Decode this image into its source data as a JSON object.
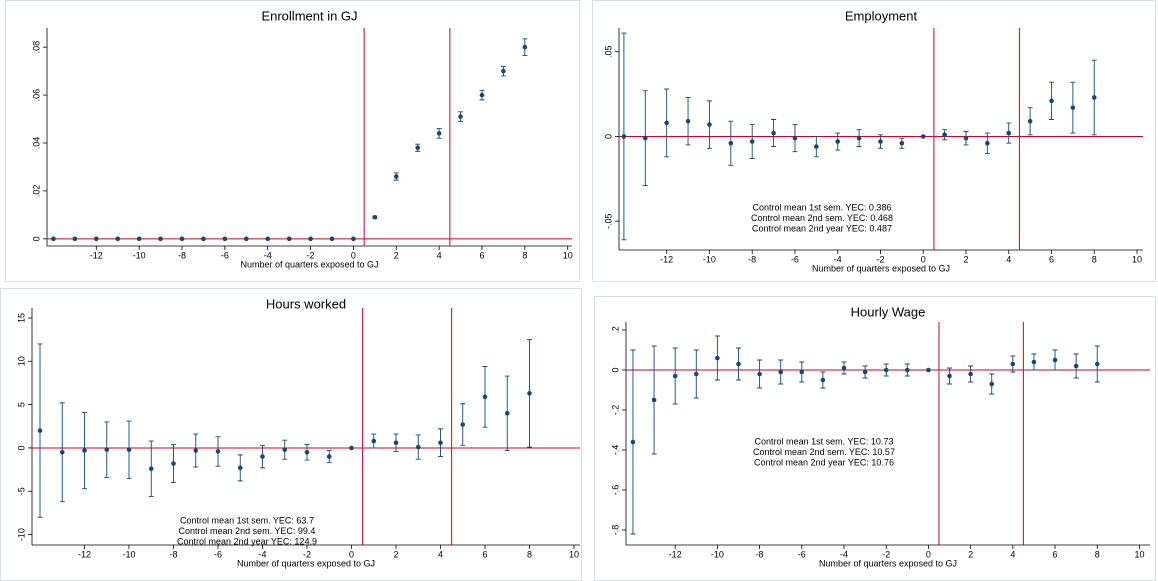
{
  "chart_data": [
    {
      "type": "scatter",
      "title": "Enrollment in GJ",
      "x_label": "Number of quarters exposed to GJ",
      "x": [
        -14,
        -13,
        -12,
        -11,
        -10,
        -9,
        -8,
        -7,
        -6,
        -5,
        -4,
        -3,
        -2,
        -1,
        0,
        1,
        2,
        3,
        4,
        5,
        6,
        7,
        8
      ],
      "values": [
        0,
        0,
        0,
        0,
        0,
        0,
        0,
        0,
        0,
        0,
        0,
        0,
        0,
        0,
        0,
        0.009,
        0.026,
        0.038,
        0.044,
        0.051,
        0.06,
        0.07,
        0.08
      ],
      "errors": [
        0,
        0,
        0,
        0,
        0,
        0,
        0,
        0,
        0,
        0,
        0,
        0,
        0,
        0,
        0,
        0.0005,
        0.0015,
        0.0015,
        0.002,
        0.002,
        0.002,
        0.002,
        0.0035
      ],
      "xlim": [
        -14.3,
        10.2
      ],
      "xticks": [
        -12,
        -10,
        -8,
        -6,
        -4,
        -2,
        0,
        2,
        4,
        6,
        8,
        10
      ],
      "ylim": [
        -0.003,
        0.088
      ],
      "yticks": [
        {
          "value": 0,
          "label": "0"
        },
        {
          "value": 0.02,
          "label": ".02"
        },
        {
          "value": 0.04,
          "label": ".04"
        },
        {
          "value": 0.06,
          "label": ".06"
        },
        {
          "value": 0.08,
          "label": ".08"
        }
      ],
      "vlines": [
        0.5,
        4.5
      ],
      "hline": 0,
      "color": "#1a476f",
      "line_color": "#c10534",
      "annotations": []
    },
    {
      "type": "scatter",
      "title": "Employment",
      "x_label": "Number of quarters exposed to GJ",
      "x": [
        -14,
        -13,
        -12,
        -11,
        -10,
        -9,
        -8,
        -7,
        -6,
        -5,
        -4,
        -3,
        -2,
        -1,
        0,
        1,
        2,
        3,
        4,
        5,
        6,
        7,
        8
      ],
      "values": [
        0,
        -0.001,
        0.008,
        0.009,
        0.007,
        -0.004,
        -0.003,
        0.002,
        -0.001,
        -0.006,
        -0.003,
        -0.001,
        -0.003,
        -0.004,
        0,
        0.001,
        -0.001,
        -0.004,
        0.002,
        0.009,
        0.021,
        0.017,
        0.023
      ],
      "errors": [
        0.061,
        0.028,
        0.02,
        0.014,
        0.014,
        0.013,
        0.01,
        0.008,
        0.008,
        0.006,
        0.005,
        0.005,
        0.004,
        0.003,
        0,
        0.003,
        0.004,
        0.006,
        0.006,
        0.008,
        0.011,
        0.015,
        0.022
      ],
      "xlim": [
        -14.23,
        10.28
      ],
      "xticks": [
        -12,
        -10,
        -8,
        -6,
        -4,
        -2,
        0,
        2,
        4,
        6,
        8,
        10
      ],
      "ylim": [
        -0.067,
        0.064
      ],
      "yticks": [
        {
          "value": -0.05,
          "label": "-.05"
        },
        {
          "value": 0,
          "label": "0"
        },
        {
          "value": 0.05,
          "label": ".05"
        }
      ],
      "vlines": [
        0.5,
        4.5
      ],
      "hline": 0,
      "color": "#1a476f",
      "line_color": "#c10534",
      "annotations": [
        "Control mean 1st sem. YEC: 0.386",
        "Control mean 2nd sem. YEC: 0.468",
        "Control mean 2nd year YEC: 0.487"
      ]
    },
    {
      "type": "scatter",
      "title": "Hours worked",
      "x_label": "Number of quarters exposed to GJ",
      "x": [
        -14,
        -13,
        -12,
        -11,
        -10,
        -9,
        -8,
        -7,
        -6,
        -5,
        -4,
        -3,
        -2,
        -1,
        0,
        1,
        2,
        3,
        4,
        5,
        6,
        7,
        8
      ],
      "values": [
        2,
        -0.5,
        -0.3,
        -0.2,
        -0.2,
        -2.4,
        -1.8,
        -0.3,
        -0.4,
        -2.3,
        -1.0,
        -0.2,
        -0.5,
        -1.0,
        0,
        0.8,
        0.6,
        0.1,
        0.6,
        2.7,
        5.9,
        4.0,
        6.3
      ],
      "errors": [
        10,
        5.7,
        4.4,
        3.2,
        3.3,
        3.2,
        2.2,
        1.9,
        1.7,
        1.5,
        1.3,
        1.1,
        0.9,
        0.7,
        0,
        0.8,
        1.0,
        1.4,
        1.6,
        2.4,
        3.5,
        4.3,
        6.2
      ],
      "xlim": [
        -14.36,
        10.27
      ],
      "xticks": [
        -12,
        -10,
        -8,
        -6,
        -4,
        -2,
        0,
        2,
        4,
        6,
        8,
        10
      ],
      "ylim": [
        -11.2,
        16.15
      ],
      "yticks": [
        -10,
        -5,
        0,
        5,
        10,
        15
      ],
      "vlines": [
        0.5,
        4.5
      ],
      "hline": 0,
      "color": "#1a476f",
      "line_color": "#c10534",
      "annotations": [
        "Control mean 1st sem. YEC: 63.7",
        "Control mean 2nd sem. YEC: 99.4",
        "Control mean 2nd year YEC: 124.9"
      ]
    },
    {
      "type": "scatter",
      "title": "Hourly Wage",
      "x_label": "Number of quarters exposed to GJ",
      "x": [
        -14,
        -13,
        -12,
        -11,
        -10,
        -9,
        -8,
        -7,
        -6,
        -5,
        -4,
        -3,
        -2,
        -1,
        0,
        1,
        2,
        3,
        4,
        5,
        6,
        7,
        8
      ],
      "values": [
        -0.36,
        -0.15,
        -0.03,
        -0.02,
        0.06,
        0.03,
        -0.02,
        -0.01,
        -0.01,
        -0.05,
        0.01,
        -0.01,
        0,
        0,
        0,
        -0.03,
        -0.02,
        -0.07,
        0.03,
        0.04,
        0.05,
        0.02,
        0.03
      ],
      "errors": [
        0.46,
        0.27,
        0.14,
        0.12,
        0.11,
        0.08,
        0.07,
        0.06,
        0.05,
        0.04,
        0.03,
        0.03,
        0.03,
        0.03,
        0,
        0.04,
        0.04,
        0.05,
        0.04,
        0.04,
        0.05,
        0.06,
        0.09
      ],
      "xlim": [
        -14.33,
        10.5
      ],
      "xticks": [
        -12,
        -10,
        -8,
        -6,
        -4,
        -2,
        0,
        2,
        4,
        6,
        8,
        10
      ],
      "ylim": [
        -0.875,
        0.24
      ],
      "yticks": [
        {
          "value": -0.8,
          "label": "-.8"
        },
        {
          "value": -0.6,
          "label": "-.6"
        },
        {
          "value": -0.4,
          "label": "-.4"
        },
        {
          "value": -0.2,
          "label": "-.2"
        },
        {
          "value": 0,
          "label": "0"
        },
        {
          "value": 0.2,
          "label": ".2"
        }
      ],
      "vlines": [
        0.5,
        4.5
      ],
      "hline": 0,
      "color": "#1a476f",
      "line_color": "#c10534",
      "annotations": [
        "Control mean 1st sem. YEC: 10.73",
        "Control mean 2nd sem. YEC: 10.57",
        "Control mean 2nd year YEC: 10.76"
      ]
    }
  ]
}
